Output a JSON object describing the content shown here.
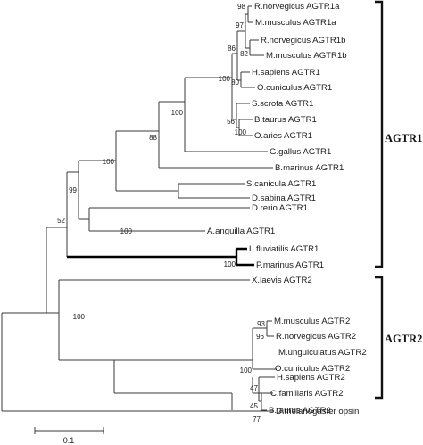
{
  "groups": {
    "agtr1": "AGTR1",
    "agtr2": "AGTR2"
  },
  "leaves": {
    "rno_agtr1a": "R.norvegicus AGTR1a",
    "mmu_agtr1a": "M.musculus AGTR1a",
    "rno_agtr1b": "R.norvegicus AGTR1b",
    "mmu_agtr1b": "M.musculus AGTR1b",
    "hsa_agtr1": "H.sapiens AGTR1",
    "ocu_agtr1": "O.cuniculus AGTR1",
    "ssc_agtr1": "S.scrofa AGTR1",
    "bta_agtr1": "B.taurus AGTR1",
    "oar_agtr1": "O.aries AGTR1",
    "gga_agtr1": "G.gallus AGTR1",
    "bma_agtr1": "B.marinus AGTR1",
    "sca_agtr1": "S.canicula AGTR1",
    "dsa_agtr1": "D.sabina AGTR1",
    "dre_agtr1": "D.rerio AGTR1",
    "aan_agtr1": "A.anguilla AGTR1",
    "lfl_agtr1": "L.fluviatilis AGTR1",
    "pma_agtr1": "P.marinus AGTR1",
    "xla_agtr2": "X.laevis AGTR2",
    "mmu_agtr2": "M.musculus AGTR2",
    "rno_agtr2": "R.norvegicus AGTR2",
    "mun_agtr2": "M.unguiculatus AGTR2",
    "ocu_agtr2": "O.cuniculus AGTR2",
    "hsa_agtr2": "H.sapiens AGTR2",
    "cfa_agtr2": "C.familiaris AGTR2",
    "bta_agtr2": "B.taurus AGTR2",
    "dme_opsin": "D.melanogaster opsin"
  },
  "bootstrap": {
    "rodent_agtr1a": "98",
    "rodent_agtr1": "97",
    "rodent_agtr1b": "82",
    "mammal_agtr1_core": "86",
    "hsa_ocu": "80",
    "mammal_agtr1": "100",
    "bta_oar": "100",
    "ungulate_agtr1": "56",
    "tetrapod_agtr1": "100",
    "gnathostome_sub": "88",
    "cartilaginous": "100",
    "gnathostome_agtr1": "99",
    "teleost": "100",
    "lamprey": "100",
    "agtr1_clade": "52",
    "agtr2_clade": "100",
    "mmu_rno_agtr2": "93",
    "rodent_agtr2": "96",
    "mammal_agtr2": "100",
    "laurasia_agtr2": "47",
    "cfa_bta": "77",
    "hsa_laurasia": "45"
  },
  "scale": {
    "label": "0.1"
  }
}
